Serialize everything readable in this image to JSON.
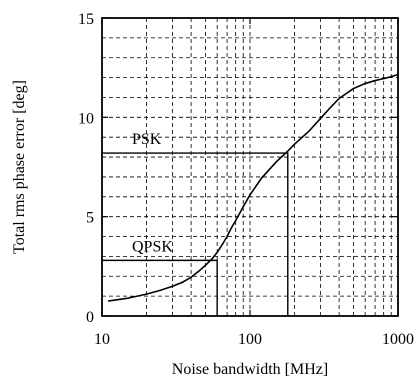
{
  "chart_data": {
    "type": "line",
    "xlabel": "Noise bandwidth [MHz]",
    "ylabel": "Total rms phase error [deg]",
    "x_scale": "log",
    "xlim": [
      10,
      1000
    ],
    "ylim": [
      0,
      15
    ],
    "grid": true,
    "x_ticks": [
      10,
      100,
      1000
    ],
    "x_tick_labels": [
      "10",
      "100",
      "1000"
    ],
    "y_ticks": [
      0,
      5,
      10,
      15
    ],
    "y_tick_labels": [
      "0",
      "5",
      "10",
      "15"
    ],
    "series": [
      {
        "x": [
          11,
          15,
          20,
          25,
          30,
          35,
          40,
          45,
          50,
          55,
          60,
          65,
          70,
          75,
          80,
          90,
          100,
          120,
          150,
          180,
          200,
          250,
          300,
          350,
          400,
          500,
          600,
          700,
          800,
          900,
          1000,
          1050
        ],
        "y": [
          0.75,
          0.9,
          1.1,
          1.3,
          1.5,
          1.7,
          1.95,
          2.25,
          2.55,
          2.85,
          3.2,
          3.6,
          4.0,
          4.45,
          4.8,
          5.5,
          6.1,
          6.95,
          7.75,
          8.3,
          8.65,
          9.3,
          9.95,
          10.5,
          10.95,
          11.45,
          11.7,
          11.85,
          11.95,
          12.05,
          12.15,
          12.2
        ]
      }
    ],
    "annotations": [
      {
        "label": "QPSK",
        "x": 60,
        "y": 2.8
      },
      {
        "label": "PSK",
        "x": 180,
        "y": 8.2
      }
    ]
  }
}
